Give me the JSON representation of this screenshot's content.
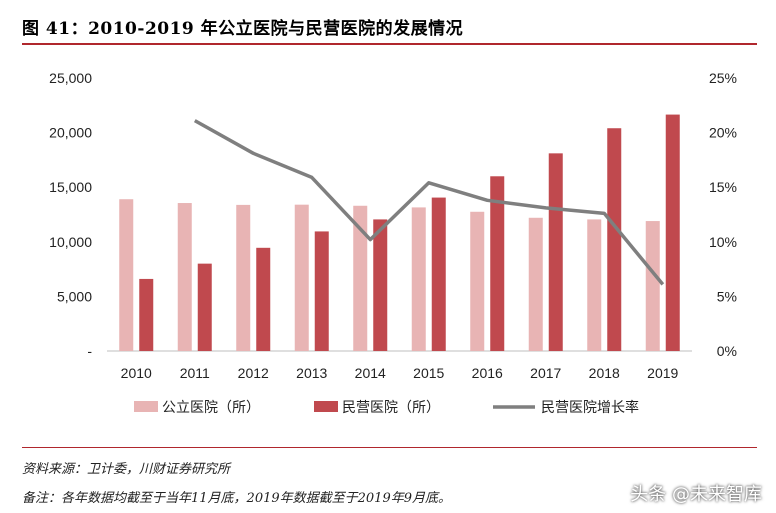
{
  "header": {
    "title": "图 41：2010-2019 年公立医院与民营医院的发展情况"
  },
  "footer": {
    "source": "资料来源：卫计委，川财证券研究所",
    "note": "备注：各年数据均截至于当年11月底，2019年数据截至于2019年9月底。",
    "watermark": "头条 @未来智库"
  },
  "colors": {
    "public": "#e8b4b4",
    "private": "#c0494e",
    "growth": "#7f7f7f"
  },
  "chart_data": {
    "type": "bar",
    "categories": [
      "2010",
      "2011",
      "2012",
      "2013",
      "2014",
      "2015",
      "2016",
      "2017",
      "2018",
      "2019"
    ],
    "series": [
      {
        "name": "公立医院（所）",
        "kind": "bar",
        "axis": "left",
        "values": [
          13900,
          13550,
          13380,
          13400,
          13300,
          13150,
          12750,
          12200,
          12050,
          11900
        ]
      },
      {
        "name": "民营医院（所）",
        "kind": "bar",
        "axis": "left",
        "values": [
          6600,
          8000,
          9450,
          10950,
          12050,
          14050,
          16000,
          18100,
          20400,
          21650
        ]
      },
      {
        "name": "民营医院增长率",
        "kind": "line",
        "axis": "right",
        "values": [
          null,
          0.211,
          0.181,
          0.159,
          0.102,
          0.154,
          0.138,
          0.131,
          0.126,
          0.061
        ]
      }
    ],
    "y_left": {
      "min": 0,
      "max": 25000,
      "ticks": [
        {
          "value": 0,
          "label": "-"
        },
        {
          "value": 5000,
          "label": "5,000"
        },
        {
          "value": 10000,
          "label": "10,000"
        },
        {
          "value": 15000,
          "label": "15,000"
        },
        {
          "value": 20000,
          "label": "20,000"
        },
        {
          "value": 25000,
          "label": "25,000"
        }
      ]
    },
    "y_right": {
      "min": 0,
      "max": 0.25,
      "ticks": [
        {
          "value": 0,
          "label": "0%"
        },
        {
          "value": 0.05,
          "label": "5%"
        },
        {
          "value": 0.1,
          "label": "10%"
        },
        {
          "value": 0.15,
          "label": "15%"
        },
        {
          "value": 0.2,
          "label": "20%"
        },
        {
          "value": 0.25,
          "label": "25%"
        }
      ]
    },
    "grid": false,
    "legend_position": "bottom"
  }
}
